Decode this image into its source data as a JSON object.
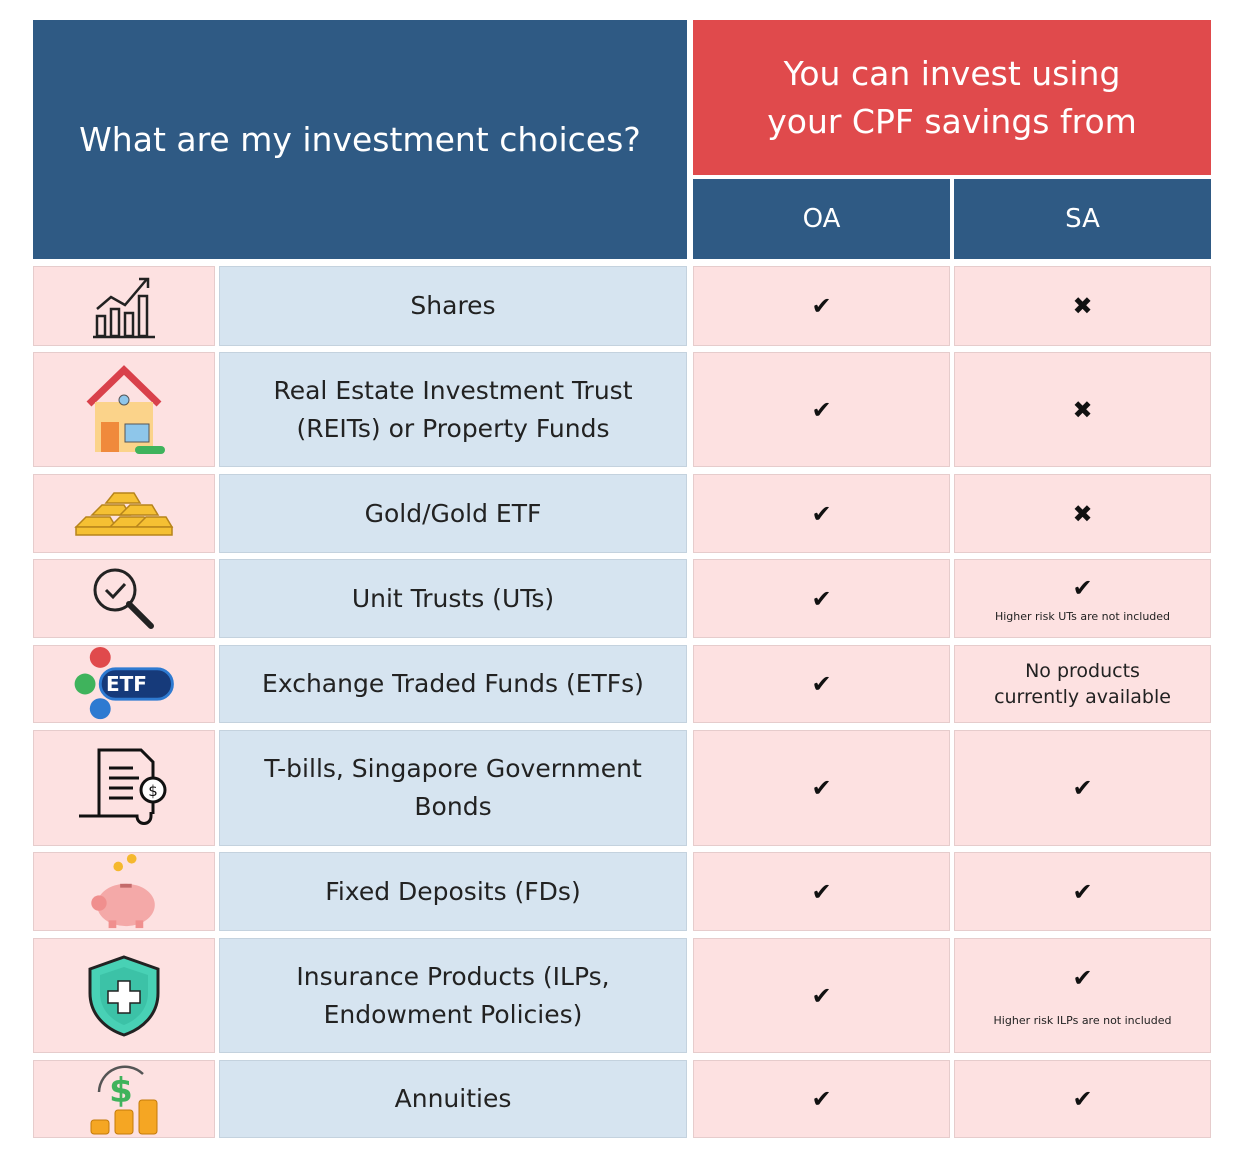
{
  "header": {
    "title": "What are my investment choices?",
    "subtitle": "You can invest using your CPF savings from",
    "columns": [
      "OA",
      "SA"
    ]
  },
  "table": {
    "rows": [
      {
        "label": "Shares",
        "oa": "✔",
        "sa": "✖"
      },
      {
        "label": "Real Estate Investment Trust (REITs) or Property Funds",
        "oa": "✔",
        "sa": "✖"
      },
      {
        "label": "Gold/Gold ETF",
        "oa": "✔",
        "sa": "✖"
      },
      {
        "label": "Unit Trusts (UTs)",
        "oa": "✔",
        "sa": "✔",
        "sa_note": "Higher risk UTs are not included"
      },
      {
        "label": "Exchange Traded Funds (ETFs)",
        "oa": "✔",
        "sa": "No products currently available",
        "icon_text": "ETF"
      },
      {
        "label": "T-bills, Singapore Government Bonds",
        "oa": "✔",
        "sa": "✔"
      },
      {
        "label": "Fixed Deposits (FDs)",
        "oa": "✔",
        "sa": "✔"
      },
      {
        "label": "Insurance Products (ILPs, Endowment Policies)",
        "oa": "✔",
        "sa": "✔",
        "sa_note": "Higher risk ILPs are not included"
      },
      {
        "label": "Annuities",
        "oa": "✔",
        "sa": "✔"
      }
    ]
  }
}
